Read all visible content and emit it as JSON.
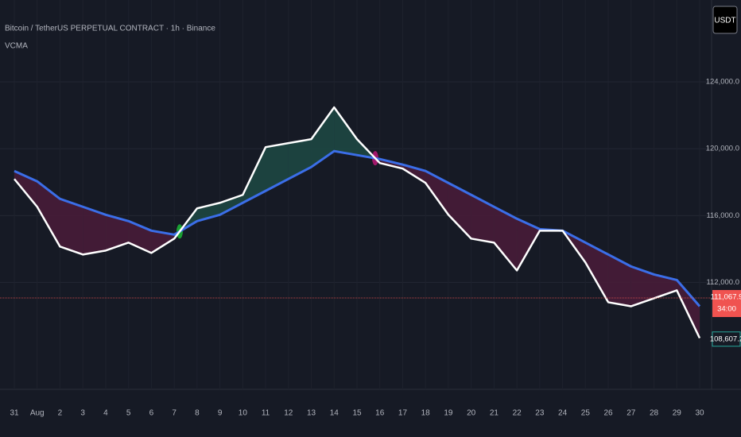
{
  "chart_data": {
    "type": "line",
    "title": "Bitcoin / TetherUS PERPETUAL CONTRACT · 1h · Binance",
    "indicator": "VCMA",
    "currency": "USDT",
    "categories": [
      "31",
      "Aug",
      "2",
      "3",
      "4",
      "5",
      "6",
      "7",
      "8",
      "9",
      "10",
      "11",
      "12",
      "13",
      "14",
      "15",
      "16",
      "17",
      "18",
      "19",
      "20",
      "21",
      "22",
      "23",
      "24",
      "25",
      "26",
      "27",
      "28",
      "29",
      "30"
    ],
    "series": [
      {
        "color": "#ffffff",
        "values": [
          118190,
          116524,
          114143,
          113667,
          113905,
          114381,
          113762,
          114619,
          116429,
          116762,
          117238,
          120095,
          120333,
          120571,
          122476,
          120571,
          119143,
          118810,
          117952,
          116048,
          114619,
          114381,
          112714,
          115095,
          115095,
          113190,
          110810,
          110571,
          111048,
          111524,
          108667
        ]
      },
      {
        "color": "#3b6ee8",
        "values": [
          118667,
          118048,
          117000,
          116524,
          116048,
          115667,
          115095,
          114857,
          115667,
          116048,
          116762,
          117476,
          118190,
          118905,
          119857,
          119619,
          119381,
          119048,
          118667,
          117952,
          117238,
          116524,
          115810,
          115190,
          115095,
          114381,
          113667,
          112952,
          112476,
          112143,
          110571
        ]
      }
    ],
    "fill_up_color": "#1d4a44",
    "fill_down_color": "#4a1c3a",
    "ylim": [
      105600,
      128900
    ],
    "yticks": [
      {
        "value": 112000,
        "label": "112,000.0"
      },
      {
        "value": 116000,
        "label": "116,000.0"
      },
      {
        "value": 120000,
        "label": "120,000.0"
      },
      {
        "value": 124000,
        "label": "124,000.0"
      }
    ],
    "grid": true,
    "price_line": {
      "value": 111067.9,
      "label": "111,067.9",
      "countdown": "34:00",
      "color": "#f05350"
    },
    "last_value": {
      "value": 108607.2,
      "label": "108,607.2",
      "color": "#26a69a"
    }
  }
}
